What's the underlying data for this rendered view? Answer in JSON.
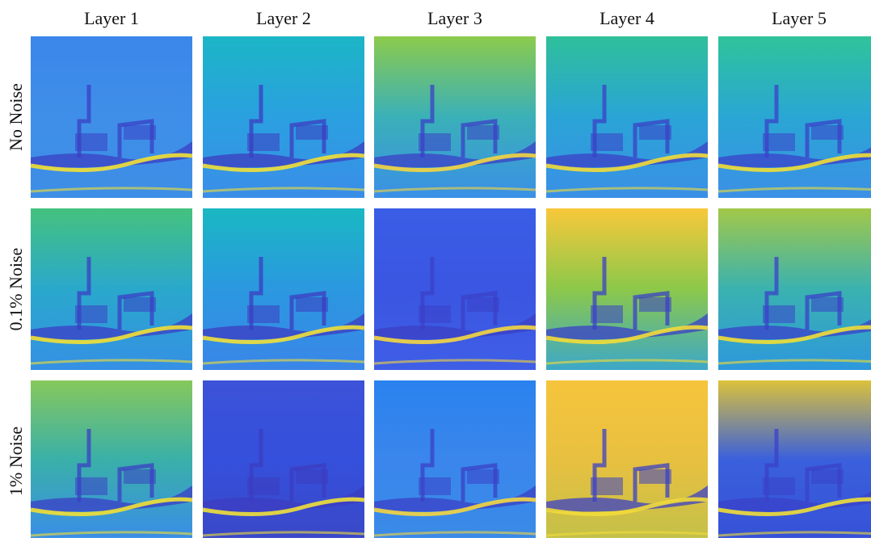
{
  "columns": [
    "Layer 1",
    "Layer 2",
    "Layer 3",
    "Layer 4",
    "Layer 5"
  ],
  "rows": [
    "No Noise",
    "0.1% Noise",
    "1% Noise"
  ]
}
